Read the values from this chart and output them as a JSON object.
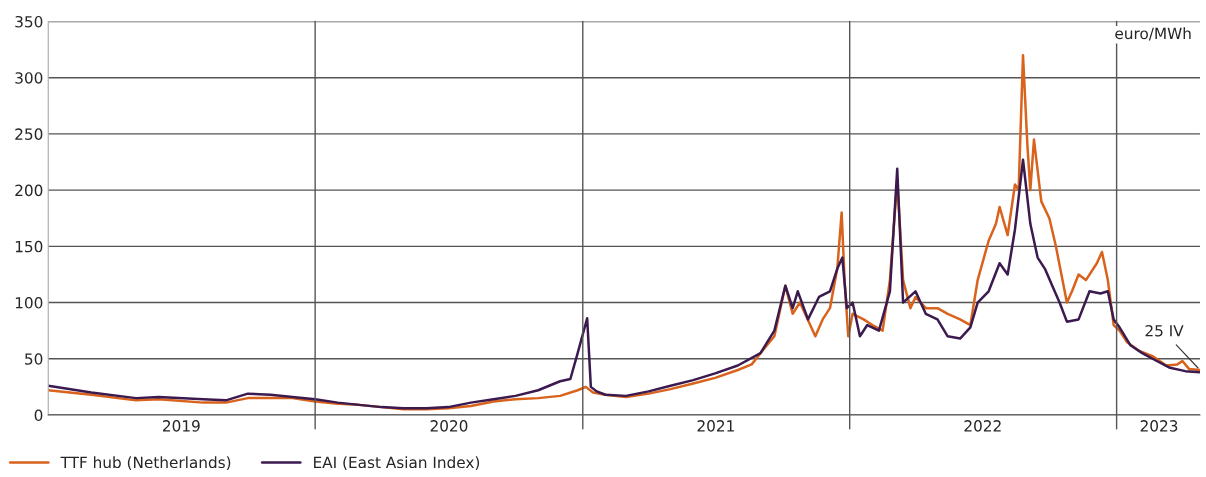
{
  "chart_data": {
    "type": "line",
    "ylabel": "euro/MWh",
    "xlim": [
      "2019-01-01",
      "2023-04-25"
    ],
    "xticks": [
      {
        "value": "2019-07-02",
        "label": "2019"
      },
      {
        "value": "2020-07-02",
        "label": "2020"
      },
      {
        "value": "2021-07-02",
        "label": "2021"
      },
      {
        "value": "2022-07-02",
        "label": "2022"
      },
      {
        "value": "2023-02-28",
        "label": "2023"
      }
    ],
    "ylim": [
      0,
      350
    ],
    "yticks": [
      0,
      50,
      100,
      150,
      200,
      250,
      300,
      350
    ],
    "grid": "y",
    "legend": "bottom left",
    "ref_lines": [
      {
        "axis": "x",
        "value": "2020-01-01",
        "color": "#555555"
      },
      {
        "axis": "x",
        "value": "2021-01-01",
        "color": "#555555"
      },
      {
        "axis": "x",
        "value": "2022-01-01",
        "color": "#555555"
      },
      {
        "axis": "x",
        "value": "2023-01-01",
        "color": "#555555"
      }
    ],
    "annotations": [
      {
        "text": "25 IV",
        "x": "2023-04-25",
        "y": 40
      }
    ],
    "series": [
      {
        "name": "TTF hub (Netherlands)",
        "color": "#d9621c",
        "x": [
          "2019-01-01",
          "2019-03-01",
          "2019-05-01",
          "2019-06-01",
          "2019-08-01",
          "2019-09-01",
          "2019-10-01",
          "2019-11-01",
          "2019-12-01",
          "2020-01-01",
          "2020-02-01",
          "2020-03-01",
          "2020-04-01",
          "2020-05-01",
          "2020-06-01",
          "2020-07-01",
          "2020-08-01",
          "2020-09-01",
          "2020-10-01",
          "2020-11-01",
          "2020-12-01",
          "2020-12-25",
          "2021-01-05",
          "2021-01-15",
          "2021-02-01",
          "2021-03-01",
          "2021-04-01",
          "2021-05-01",
          "2021-06-01",
          "2021-07-01",
          "2021-08-01",
          "2021-08-20",
          "2021-09-01",
          "2021-09-20",
          "2021-10-05",
          "2021-10-15",
          "2021-10-25",
          "2021-11-01",
          "2021-11-15",
          "2021-11-25",
          "2021-12-05",
          "2021-12-15",
          "2021-12-21",
          "2021-12-25",
          "2021-12-30",
          "2022-01-05",
          "2022-01-20",
          "2022-02-01",
          "2022-02-15",
          "2022-02-25",
          "2022-03-07",
          "2022-03-15",
          "2022-03-25",
          "2022-04-01",
          "2022-04-15",
          "2022-05-01",
          "2022-05-15",
          "2022-06-01",
          "2022-06-15",
          "2022-06-25",
          "2022-07-10",
          "2022-07-20",
          "2022-07-25",
          "2022-08-05",
          "2022-08-15",
          "2022-08-20",
          "2022-08-26",
          "2022-09-01",
          "2022-09-05",
          "2022-09-10",
          "2022-09-20",
          "2022-10-01",
          "2022-10-10",
          "2022-10-25",
          "2022-11-01",
          "2022-11-10",
          "2022-11-20",
          "2022-12-05",
          "2022-12-12",
          "2022-12-20",
          "2022-12-28",
          "2023-01-05",
          "2023-01-15",
          "2023-02-01",
          "2023-02-20",
          "2023-03-10",
          "2023-03-25",
          "2023-04-01",
          "2023-04-10",
          "2023-04-25"
        ],
        "values": [
          22,
          18,
          13,
          14,
          11,
          11,
          15,
          15,
          15,
          12,
          10,
          9,
          7,
          5,
          5,
          6,
          8,
          12,
          14,
          15,
          17,
          22,
          25,
          20,
          18,
          16,
          19,
          23,
          28,
          33,
          40,
          45,
          55,
          70,
          115,
          90,
          100,
          90,
          70,
          85,
          95,
          130,
          180,
          120,
          70,
          90,
          85,
          80,
          75,
          120,
          209,
          120,
          95,
          105,
          95,
          95,
          90,
          85,
          80,
          120,
          155,
          170,
          185,
          160,
          205,
          200,
          320,
          240,
          200,
          245,
          190,
          175,
          150,
          100,
          110,
          125,
          120,
          135,
          145,
          120,
          80,
          75,
          65,
          57,
          52,
          44,
          45,
          48,
          41,
          40
        ]
      },
      {
        "name": "EAI (East Asian Index)",
        "color": "#3b1a4f",
        "x": [
          "2019-01-01",
          "2019-03-01",
          "2019-05-01",
          "2019-06-01",
          "2019-08-01",
          "2019-09-01",
          "2019-10-01",
          "2019-11-01",
          "2019-12-01",
          "2020-01-01",
          "2020-02-01",
          "2020-03-01",
          "2020-04-01",
          "2020-05-01",
          "2020-06-01",
          "2020-07-01",
          "2020-08-01",
          "2020-09-01",
          "2020-10-01",
          "2020-11-01",
          "2020-12-01",
          "2020-12-15",
          "2020-12-25",
          "2021-01-07",
          "2021-01-12",
          "2021-01-20",
          "2021-02-01",
          "2021-03-01",
          "2021-04-01",
          "2021-05-01",
          "2021-06-01",
          "2021-07-01",
          "2021-08-01",
          "2021-09-01",
          "2021-09-20",
          "2021-10-05",
          "2021-10-15",
          "2021-10-22",
          "2021-11-05",
          "2021-11-20",
          "2021-12-05",
          "2021-12-15",
          "2021-12-22",
          "2021-12-28",
          "2022-01-05",
          "2022-01-15",
          "2022-01-25",
          "2022-02-10",
          "2022-02-25",
          "2022-03-07",
          "2022-03-15",
          "2022-04-01",
          "2022-04-15",
          "2022-05-01",
          "2022-05-15",
          "2022-06-01",
          "2022-06-15",
          "2022-06-25",
          "2022-07-10",
          "2022-07-25",
          "2022-08-05",
          "2022-08-15",
          "2022-08-26",
          "2022-09-05",
          "2022-09-15",
          "2022-09-25",
          "2022-10-05",
          "2022-10-15",
          "2022-10-25",
          "2022-11-10",
          "2022-11-25",
          "2022-12-10",
          "2022-12-20",
          "2022-12-28",
          "2023-01-05",
          "2023-01-20",
          "2023-02-05",
          "2023-02-25",
          "2023-03-15",
          "2023-04-05",
          "2023-04-25"
        ],
        "values": [
          26,
          20,
          15,
          16,
          14,
          13,
          19,
          18,
          16,
          14,
          11,
          9,
          7,
          6,
          6,
          7,
          11,
          14,
          17,
          22,
          30,
          32,
          55,
          86,
          25,
          21,
          18,
          17,
          21,
          26,
          31,
          37,
          44,
          55,
          75,
          115,
          95,
          110,
          85,
          105,
          110,
          130,
          140,
          95,
          100,
          70,
          80,
          75,
          110,
          219,
          100,
          110,
          90,
          85,
          70,
          68,
          78,
          100,
          110,
          135,
          125,
          165,
          227,
          170,
          140,
          130,
          115,
          100,
          83,
          85,
          110,
          108,
          110,
          85,
          78,
          62,
          55,
          48,
          42,
          39,
          38
        ]
      }
    ]
  }
}
